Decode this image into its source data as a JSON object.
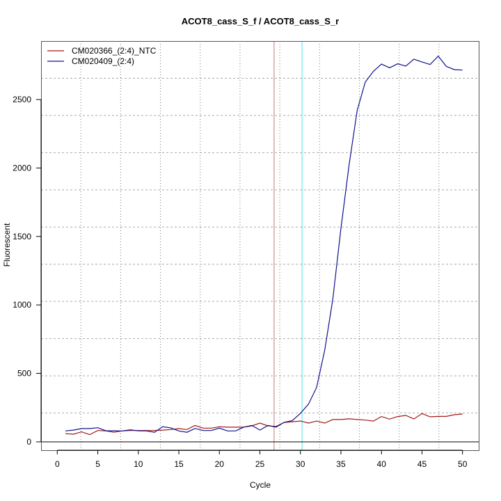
{
  "chart_data": {
    "type": "line",
    "title": "ACOT8_cass_S_f / ACOT8_cass_S_r",
    "xlabel": "Cycle",
    "ylabel": "Fluorescent",
    "xlim": [
      -2,
      52
    ],
    "ylim": [
      -61,
      2927
    ],
    "xticks": [
      0,
      5,
      10,
      15,
      20,
      25,
      30,
      35,
      40,
      45,
      50
    ],
    "yticks": [
      0,
      500,
      1000,
      1500,
      2000,
      2500
    ],
    "grid": true,
    "legend_position": "top-left",
    "x": [
      1,
      2,
      3,
      4,
      5,
      6,
      7,
      8,
      9,
      10,
      11,
      12,
      13,
      14,
      15,
      16,
      17,
      18,
      19,
      20,
      21,
      22,
      23,
      24,
      25,
      26,
      27,
      28,
      29,
      30,
      31,
      32,
      33,
      34,
      35,
      36,
      37,
      38,
      39,
      40,
      41,
      42,
      43,
      44,
      45,
      46,
      47,
      48,
      49,
      50
    ],
    "series": [
      {
        "name": "CM020366_(2:4)_NTC",
        "color": "#a01818",
        "values": [
          60,
          56,
          73,
          53,
          83,
          80,
          70,
          80,
          83,
          83,
          83,
          83,
          86,
          90,
          97,
          90,
          120,
          100,
          100,
          110,
          107,
          107,
          107,
          117,
          137,
          117,
          113,
          142,
          147,
          152,
          137,
          152,
          137,
          163,
          163,
          168,
          163,
          159,
          152,
          185,
          166,
          185,
          193,
          167,
          207,
          183,
          186,
          186,
          198,
          203
        ]
      },
      {
        "name": "CM020409_(2:4)",
        "color": "#10108c",
        "values": [
          80,
          86,
          97,
          97,
          103,
          81,
          81,
          80,
          88,
          81,
          80,
          70,
          110,
          102,
          80,
          70,
          98,
          83,
          83,
          100,
          80,
          80,
          107,
          120,
          86,
          120,
          107,
          143,
          155,
          208,
          276,
          398,
          670,
          1042,
          1560,
          2020,
          2420,
          2627,
          2706,
          2759,
          2732,
          2761,
          2744,
          2795,
          2774,
          2756,
          2817,
          2742,
          2718,
          2715
        ]
      }
    ],
    "vertical_lines": [
      {
        "x": 26.75,
        "color": "#c87878"
      },
      {
        "x": 30.2,
        "color": "#50e0e8"
      }
    ],
    "zero_line_color": "#000000"
  }
}
